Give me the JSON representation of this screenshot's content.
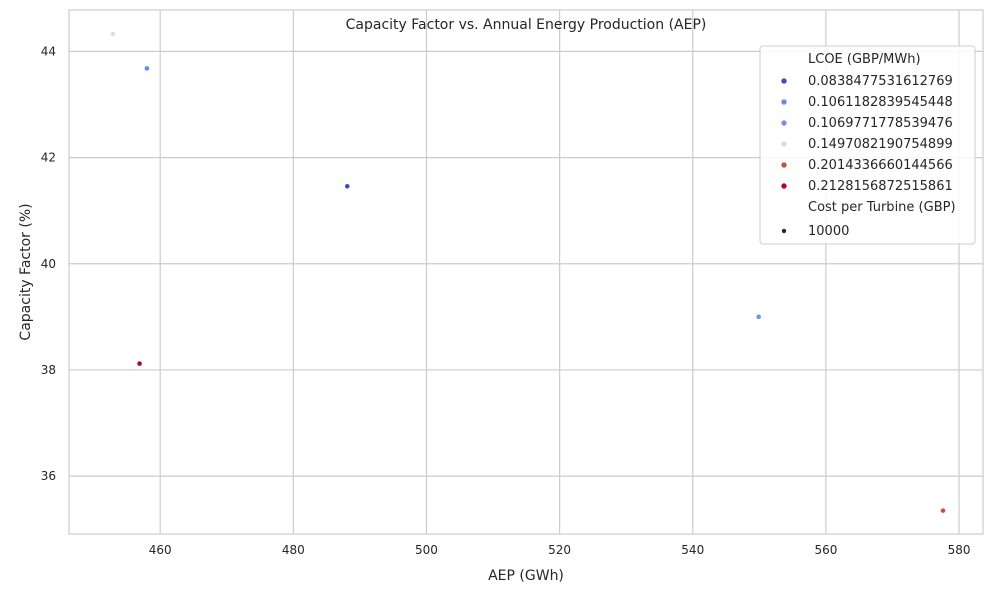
{
  "chart_data": {
    "type": "scatter",
    "title": "Capacity Factor vs. Annual Energy Production (AEP)",
    "xlabel": "AEP (GWh)",
    "ylabel": "Capacity Factor (%)",
    "xlim": [
      446.3,
      583.6
    ],
    "ylim": [
      34.91,
      44.78
    ],
    "xticks": [
      460,
      480,
      500,
      520,
      540,
      560,
      580
    ],
    "yticks": [
      36,
      38,
      40,
      42,
      44
    ],
    "grid": true,
    "legend_position": "top-right",
    "legend": {
      "hue_title": "LCOE (GBP/MWh)",
      "hue_entries": [
        {
          "label": "0.0838477531612769",
          "color": "#3b4cc0"
        },
        {
          "label": "0.1061182839545448",
          "color": "#6788ee"
        },
        {
          "label": "0.1069771778539476",
          "color": "#6f92f3"
        },
        {
          "label": "0.1497082190754899",
          "color": "#dddddd"
        },
        {
          "label": "0.2014336660144566",
          "color": "#d24b40"
        },
        {
          "label": "0.2128156872515861",
          "color": "#b40426"
        }
      ],
      "size_title": "Cost per Turbine (GBP)",
      "size_entries": [
        {
          "label": "10000",
          "color": "#262626"
        }
      ]
    },
    "points": [
      {
        "x": 452.9,
        "y": 44.33,
        "color": "#dddddd"
      },
      {
        "x": 458.0,
        "y": 43.68,
        "color": "#6788ee"
      },
      {
        "x": 488.1,
        "y": 41.46,
        "color": "#3b4cc0"
      },
      {
        "x": 456.9,
        "y": 38.12,
        "color": "#b40426"
      },
      {
        "x": 549.9,
        "y": 39.0,
        "color": "#6f92f3"
      },
      {
        "x": 577.6,
        "y": 35.35,
        "color": "#d24b40"
      }
    ]
  }
}
